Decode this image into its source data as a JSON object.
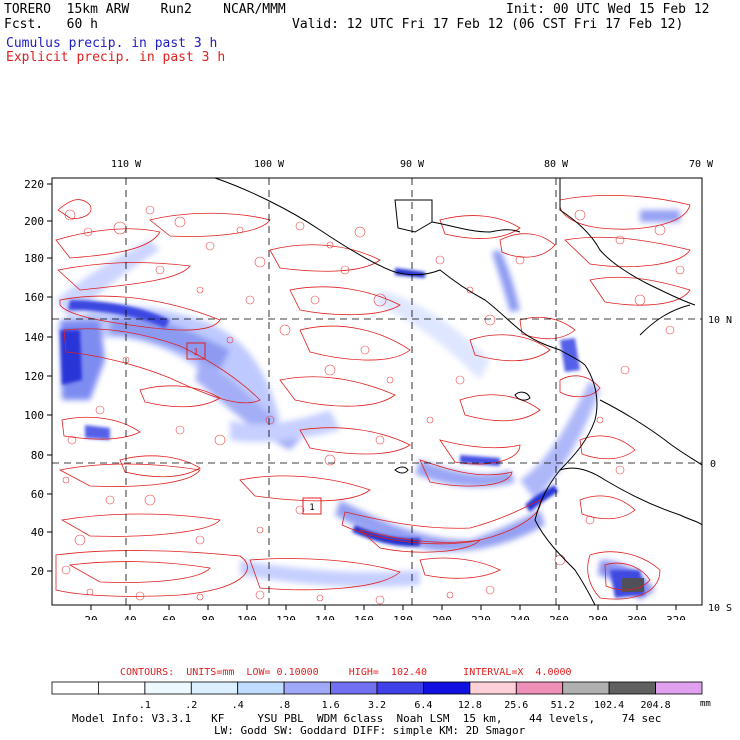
{
  "header": {
    "l1": "TORERO  15km ARW    Run2    NCAR/MMM",
    "l2": "Fcst.   60 h",
    "r1": "Init: 00 UTC Wed 15 Feb 12",
    "r2": "Valid: 12 UTC Fri 17 Feb 12 (06 CST Fri 17 Feb 12)",
    "leg1": "Cumulus precip. in past 3 h",
    "leg2": "Explicit precip. in past 3 h"
  },
  "axes": {
    "lon_labels": [
      "110 W",
      "100 W",
      "90 W",
      "80 W",
      "70 W"
    ],
    "lat_labels": [
      "10 N",
      "0",
      "10 S"
    ],
    "y_ticks": [
      "220",
      "200",
      "180",
      "160",
      "140",
      "120",
      "100",
      "80",
      "60",
      "40",
      "20"
    ],
    "x_ticks": [
      "20",
      "40",
      "60",
      "80",
      "100",
      "120",
      "140",
      "160",
      "180",
      "200",
      "220",
      "240",
      "260",
      "280",
      "300",
      "320"
    ]
  },
  "map_features": {
    "markers": [
      "1",
      "1"
    ]
  },
  "contours_text": "CONTOURS:  UNITS=mm  LOW= 0.10000     HIGH=  102.40      INTERVAL=X  4.0000",
  "colorbar": {
    "labels": [
      ".1",
      ".2",
      ".4",
      ".8",
      "1.6",
      "3.2",
      "6.4",
      "12.8",
      "25.6",
      "51.2",
      "102.4",
      "204.8"
    ],
    "unit": "mm",
    "colors": [
      "#ffffff",
      "#ffffff",
      "#eef8ff",
      "#dcf0ff",
      "#c0dcff",
      "#a0a8f8",
      "#7070f0",
      "#4040e8",
      "#1010e0",
      "#ffd0d8",
      "#f090b8",
      "#b0b0b0",
      "#606060",
      "#e0a0f0"
    ]
  },
  "footer": {
    "l1": "Model Info: V3.3.1   KF     YSU PBL  WDM 6class  Noah LSM  15 km,    44 levels,    74 sec",
    "l2": "LW: Godd SW: Goddard DIFF: simple KM: 2D Smagor"
  }
}
